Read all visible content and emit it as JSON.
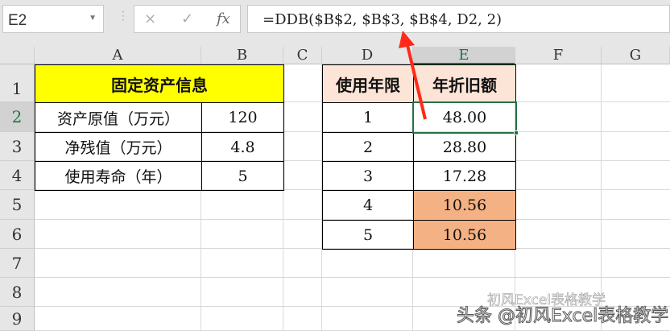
{
  "name_box": "E2",
  "formula_bar": {
    "cancel_icon": "×",
    "enter_icon": "✓",
    "fx_label": "fx",
    "formula": "=DDB($B$2, $B$3, $B$4, D2, 2)"
  },
  "columns": [
    "A",
    "B",
    "C",
    "D",
    "E",
    "F",
    "G"
  ],
  "rows": [
    "1",
    "2",
    "3",
    "4",
    "5",
    "6",
    "7",
    "8",
    "9"
  ],
  "asset_table": {
    "title": "固定资产信息",
    "rows": [
      {
        "label": "资产原值（万元）",
        "value": "120"
      },
      {
        "label": "净残值（万元）",
        "value": "4.8"
      },
      {
        "label": "使用寿命（年）",
        "value": "5"
      }
    ]
  },
  "depr_table": {
    "headers": [
      "使用年限",
      "年折旧额"
    ],
    "rows": [
      {
        "year": "1",
        "amount": "48.00"
      },
      {
        "year": "2",
        "amount": "28.80"
      },
      {
        "year": "3",
        "amount": "17.28"
      },
      {
        "year": "4",
        "amount": "10.56"
      },
      {
        "year": "5",
        "amount": "10.56"
      }
    ]
  },
  "colors": {
    "title_fill": "#ffff00",
    "header_fill": "#fce4d6",
    "highlight_fill": "#f4b183",
    "selection": "#217346",
    "arrow": "#ff2a1a"
  },
  "watermark": {
    "line1": "初风Excel表格教学",
    "line2": "头条 @初风Excel表格教学"
  }
}
